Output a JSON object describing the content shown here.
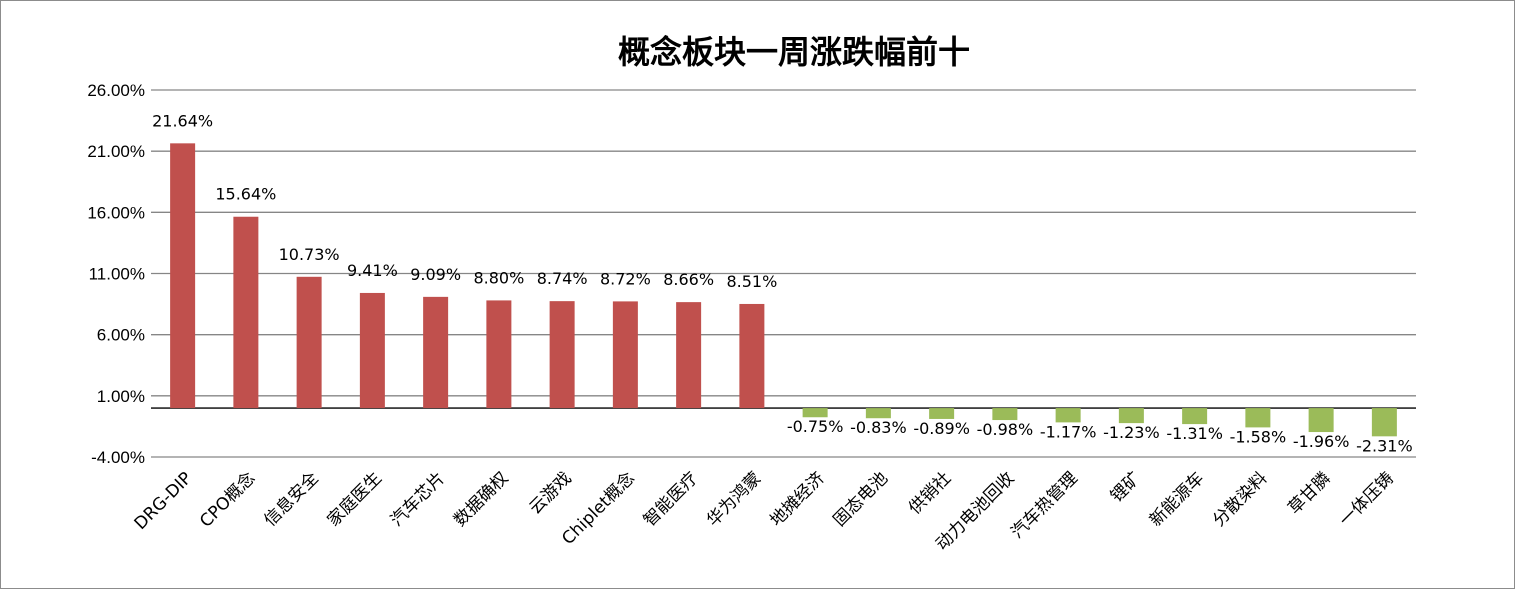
{
  "chart_data": {
    "type": "bar",
    "title": "概念板块一周涨跌幅前十",
    "xlabel": "",
    "ylabel": "",
    "ylim": [
      -4,
      26
    ],
    "y_ticks": [
      "26.00%",
      "21.00%",
      "16.00%",
      "11.00%",
      "6.00%",
      "1.00%",
      "-4.00%"
    ],
    "y_tick_values": [
      26,
      21,
      16,
      11,
      6,
      1,
      -4
    ],
    "grid": true,
    "legend": "none",
    "colors": {
      "positive": "#c0504d",
      "negative": "#9bbb59",
      "grid": "#868686"
    },
    "categories": [
      "DRG-DIP",
      "CPO概念",
      "信息安全",
      "家庭医生",
      "汽车芯片",
      "数据确权",
      "云游戏",
      "Chiplet概念",
      "智能医疗",
      "华为鸿蒙",
      "地摊经济",
      "固态电池",
      "供销社",
      "动力电池回收",
      "汽车热管理",
      "锂矿",
      "新能源车",
      "分散染料",
      "草甘膦",
      "一体压铸"
    ],
    "values": [
      21.64,
      15.64,
      10.73,
      9.41,
      9.09,
      8.8,
      8.74,
      8.72,
      8.66,
      8.51,
      -0.75,
      -0.83,
      -0.89,
      -0.98,
      -1.17,
      -1.23,
      -1.31,
      -1.58,
      -1.96,
      -2.31
    ],
    "data_labels": [
      "21.64%",
      "15.64%",
      "10.73%",
      "9.41%",
      "9.09%",
      "8.80%",
      "8.74%",
      "8.72%",
      "8.66%",
      "8.51%",
      "-0.75%",
      "-0.83%",
      "-0.89%",
      "-0.98%",
      "-1.17%",
      "-1.23%",
      "-1.31%",
      "-1.58%",
      "-1.96%",
      "-2.31%"
    ]
  }
}
